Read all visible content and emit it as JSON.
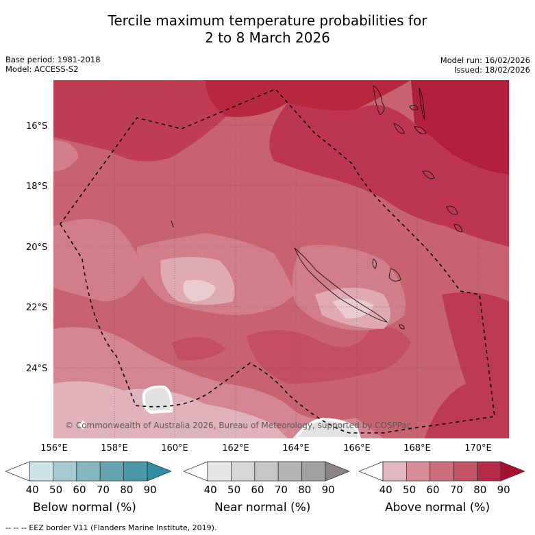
{
  "title_line1": "Tercile maximum temperature probabilities for",
  "title_line2": "2 to 8 March 2026",
  "base_period": "Base period: 1981-2018",
  "model": "Model: ACCESS-S2",
  "model_run": "Model run: 16/02/2026",
  "issued": "Issued: 18/02/2026",
  "latitude_labels": [
    "16°S",
    "18°S",
    "20°S",
    "22°S",
    "24°S"
  ],
  "longitude_labels": [
    "156°E",
    "158°E",
    "160°E",
    "162°E",
    "164°E",
    "166°E",
    "168°E",
    "170°E"
  ],
  "credit": "© Commonwealth of Australia 2026, Bureau of Meteorology, supported by COSPPac",
  "colorbars": [
    {
      "title": "Below normal (%)",
      "ticks": [
        "40",
        "50",
        "60",
        "70",
        "80",
        "90"
      ],
      "colors": [
        "#ffffff",
        "#cde3e8",
        "#a6cbd2",
        "#86b6c0",
        "#66a4b1",
        "#4a98a8",
        "#2f8ea0"
      ]
    },
    {
      "title": "Near normal (%)",
      "ticks": [
        "40",
        "50",
        "60",
        "70",
        "80",
        "90"
      ],
      "colors": [
        "#ffffff",
        "#e6e6e6",
        "#d7d7d7",
        "#c6c6c6",
        "#b4b4b4",
        "#a0a0a0",
        "#8a8484"
      ]
    },
    {
      "title": "Above normal (%)",
      "ticks": [
        "40",
        "50",
        "60",
        "70",
        "80",
        "90"
      ],
      "colors": [
        "#ffffff",
        "#e3b7bf",
        "#d88c98",
        "#cd6f7e",
        "#c25466",
        "#b42a48",
        "#a8102f"
      ]
    }
  ],
  "footer_note": "--  --  -- EEZ border V11 (Flanders Marine Institute, 2019)."
}
